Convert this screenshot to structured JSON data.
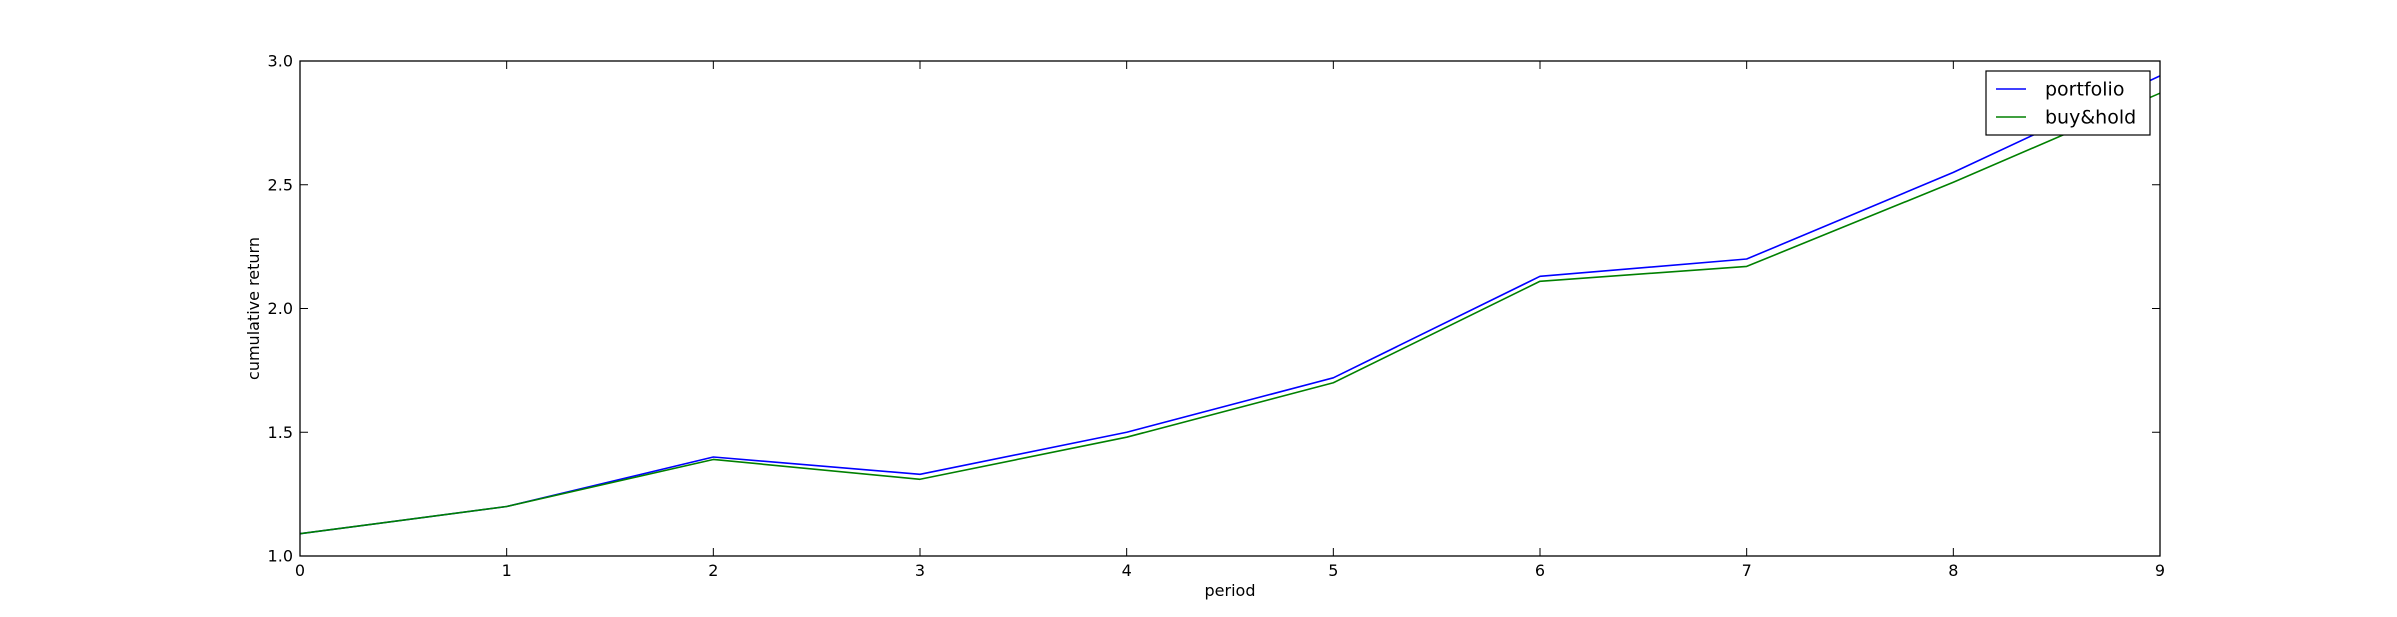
{
  "chart_data": {
    "type": "line",
    "title": "",
    "xlabel": "period",
    "ylabel": "cumulative return",
    "xlim": [
      0,
      9
    ],
    "ylim": [
      1.0,
      3.0
    ],
    "xticks": [
      "0",
      "1",
      "2",
      "3",
      "4",
      "5",
      "6",
      "7",
      "8",
      "9"
    ],
    "yticks": [
      "1.0",
      "1.5",
      "2.0",
      "2.5",
      "3.0"
    ],
    "grid": false,
    "legend_position": "top-right",
    "x": [
      0,
      1,
      2,
      3,
      4,
      5,
      6,
      7,
      8,
      9
    ],
    "series": [
      {
        "name": "portfolio",
        "color": "#0000ff",
        "values": [
          1.09,
          1.2,
          1.4,
          1.33,
          1.5,
          1.72,
          2.13,
          2.2,
          2.55,
          2.94
        ]
      },
      {
        "name": "buy&hold",
        "color": "#008000",
        "values": [
          1.09,
          1.2,
          1.39,
          1.31,
          1.48,
          1.7,
          2.11,
          2.17,
          2.51,
          2.87
        ]
      }
    ]
  }
}
